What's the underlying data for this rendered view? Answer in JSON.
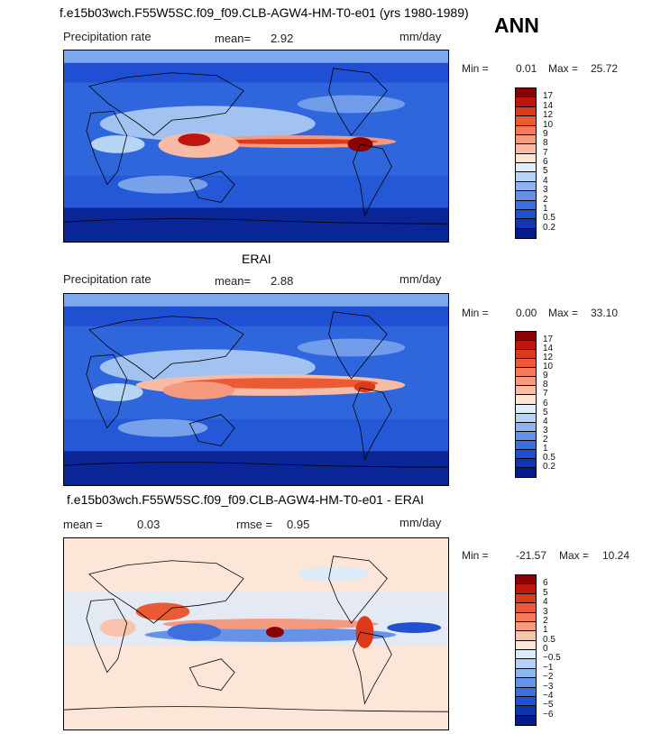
{
  "header": {
    "title": "f.e15b03wch.F55W5SC.f09_f09.CLB-AGW4-HM-T0-e01 (yrs 1980-1989)",
    "season": "ANN"
  },
  "panels": [
    {
      "variable": "Precipitation rate",
      "stat_label": "mean=",
      "stat_value": "2.92",
      "units": "mm/day",
      "min_label": "Min =",
      "min_value": "0.01",
      "max_label": "Max =",
      "max_value": "25.72"
    },
    {
      "title": "ERAI",
      "variable": "Precipitation rate",
      "stat_label": "mean=",
      "stat_value": "2.88",
      "units": "mm/day",
      "min_label": "Min =",
      "min_value": "0.00",
      "max_label": "Max =",
      "max_value": "33.10"
    },
    {
      "title": "f.e15b03wch.F55W5SC.f09_f09.CLB-AGW4-HM-T0-e01 - ERAI",
      "stat_label": "mean =",
      "stat_value": "0.03",
      "rmse_label": "rmse =",
      "rmse_value": "0.95",
      "units": "mm/day",
      "min_label": "Min =",
      "min_value": "-21.57",
      "max_label": "Max =",
      "max_value": "10.24"
    }
  ],
  "colorbars": {
    "precip": {
      "labels": [
        "17",
        "14",
        "12",
        "10",
        "9",
        "8",
        "7",
        "6",
        "5",
        "4",
        "3",
        "2",
        "1",
        "0.5",
        "0.2"
      ],
      "colors": [
        "#8b0000",
        "#c0150e",
        "#dd3a1c",
        "#ec5a35",
        "#f2795a",
        "#f59a7e",
        "#f8bca4",
        "#fde4d4",
        "#dfeefa",
        "#b6d4f4",
        "#8cb4ee",
        "#6391e6",
        "#3d6edf",
        "#1f4fd3",
        "#1236b2",
        "#041b8d"
      ]
    },
    "diff": {
      "labels": [
        "6",
        "5",
        "4",
        "3",
        "2",
        "1",
        "0.5",
        "0",
        "−0.5",
        "−1",
        "−2",
        "−3",
        "−4",
        "−5",
        "−6"
      ],
      "colors": [
        "#8b0000",
        "#c0150e",
        "#dd3a1c",
        "#ec5a35",
        "#f2795a",
        "#f59a7e",
        "#f8c2ac",
        "#fde6d8",
        "#dcebfa",
        "#b3d1f4",
        "#8db5ee",
        "#6793e6",
        "#3f6fdf",
        "#2150d2",
        "#1034ae",
        "#041b8d"
      ]
    }
  }
}
